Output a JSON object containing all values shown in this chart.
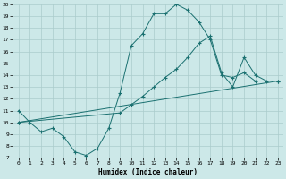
{
  "xlabel": "Humidex (Indice chaleur)",
  "xlim": [
    -0.5,
    23.5
  ],
  "ylim": [
    7,
    20
  ],
  "yticks": [
    7,
    8,
    9,
    10,
    11,
    12,
    13,
    14,
    15,
    16,
    17,
    18,
    19,
    20
  ],
  "xticks": [
    0,
    1,
    2,
    3,
    4,
    5,
    6,
    7,
    8,
    9,
    10,
    11,
    12,
    13,
    14,
    15,
    16,
    17,
    18,
    19,
    20,
    21,
    22,
    23
  ],
  "background_color": "#cce8e8",
  "grid_color": "#aacccc",
  "line_color": "#1a7070",
  "line1_x": [
    0,
    1,
    2,
    3,
    4,
    5,
    6,
    7,
    8,
    9,
    10,
    11,
    12,
    13,
    14,
    15,
    16,
    17,
    18,
    19,
    20,
    21
  ],
  "line1_y": [
    11,
    10,
    9.2,
    9.5,
    8.8,
    7.5,
    7.2,
    7.8,
    9.5,
    12.5,
    16.5,
    17.5,
    19.2,
    19.2,
    20.0,
    19.5,
    18.5,
    17.0,
    14.0,
    13.8,
    14.2,
    13.5
  ],
  "line2_x": [
    0,
    23
  ],
  "line2_y": [
    10,
    13.5
  ],
  "line3_x": [
    0,
    9,
    10,
    11,
    12,
    13,
    14,
    15,
    16,
    17,
    18,
    19,
    20,
    21,
    22,
    23
  ],
  "line3_y": [
    10,
    10.8,
    11.5,
    12.2,
    13.0,
    13.8,
    14.5,
    15.5,
    16.7,
    17.3,
    14.2,
    13.0,
    15.5,
    14.0,
    13.5,
    13.5
  ]
}
